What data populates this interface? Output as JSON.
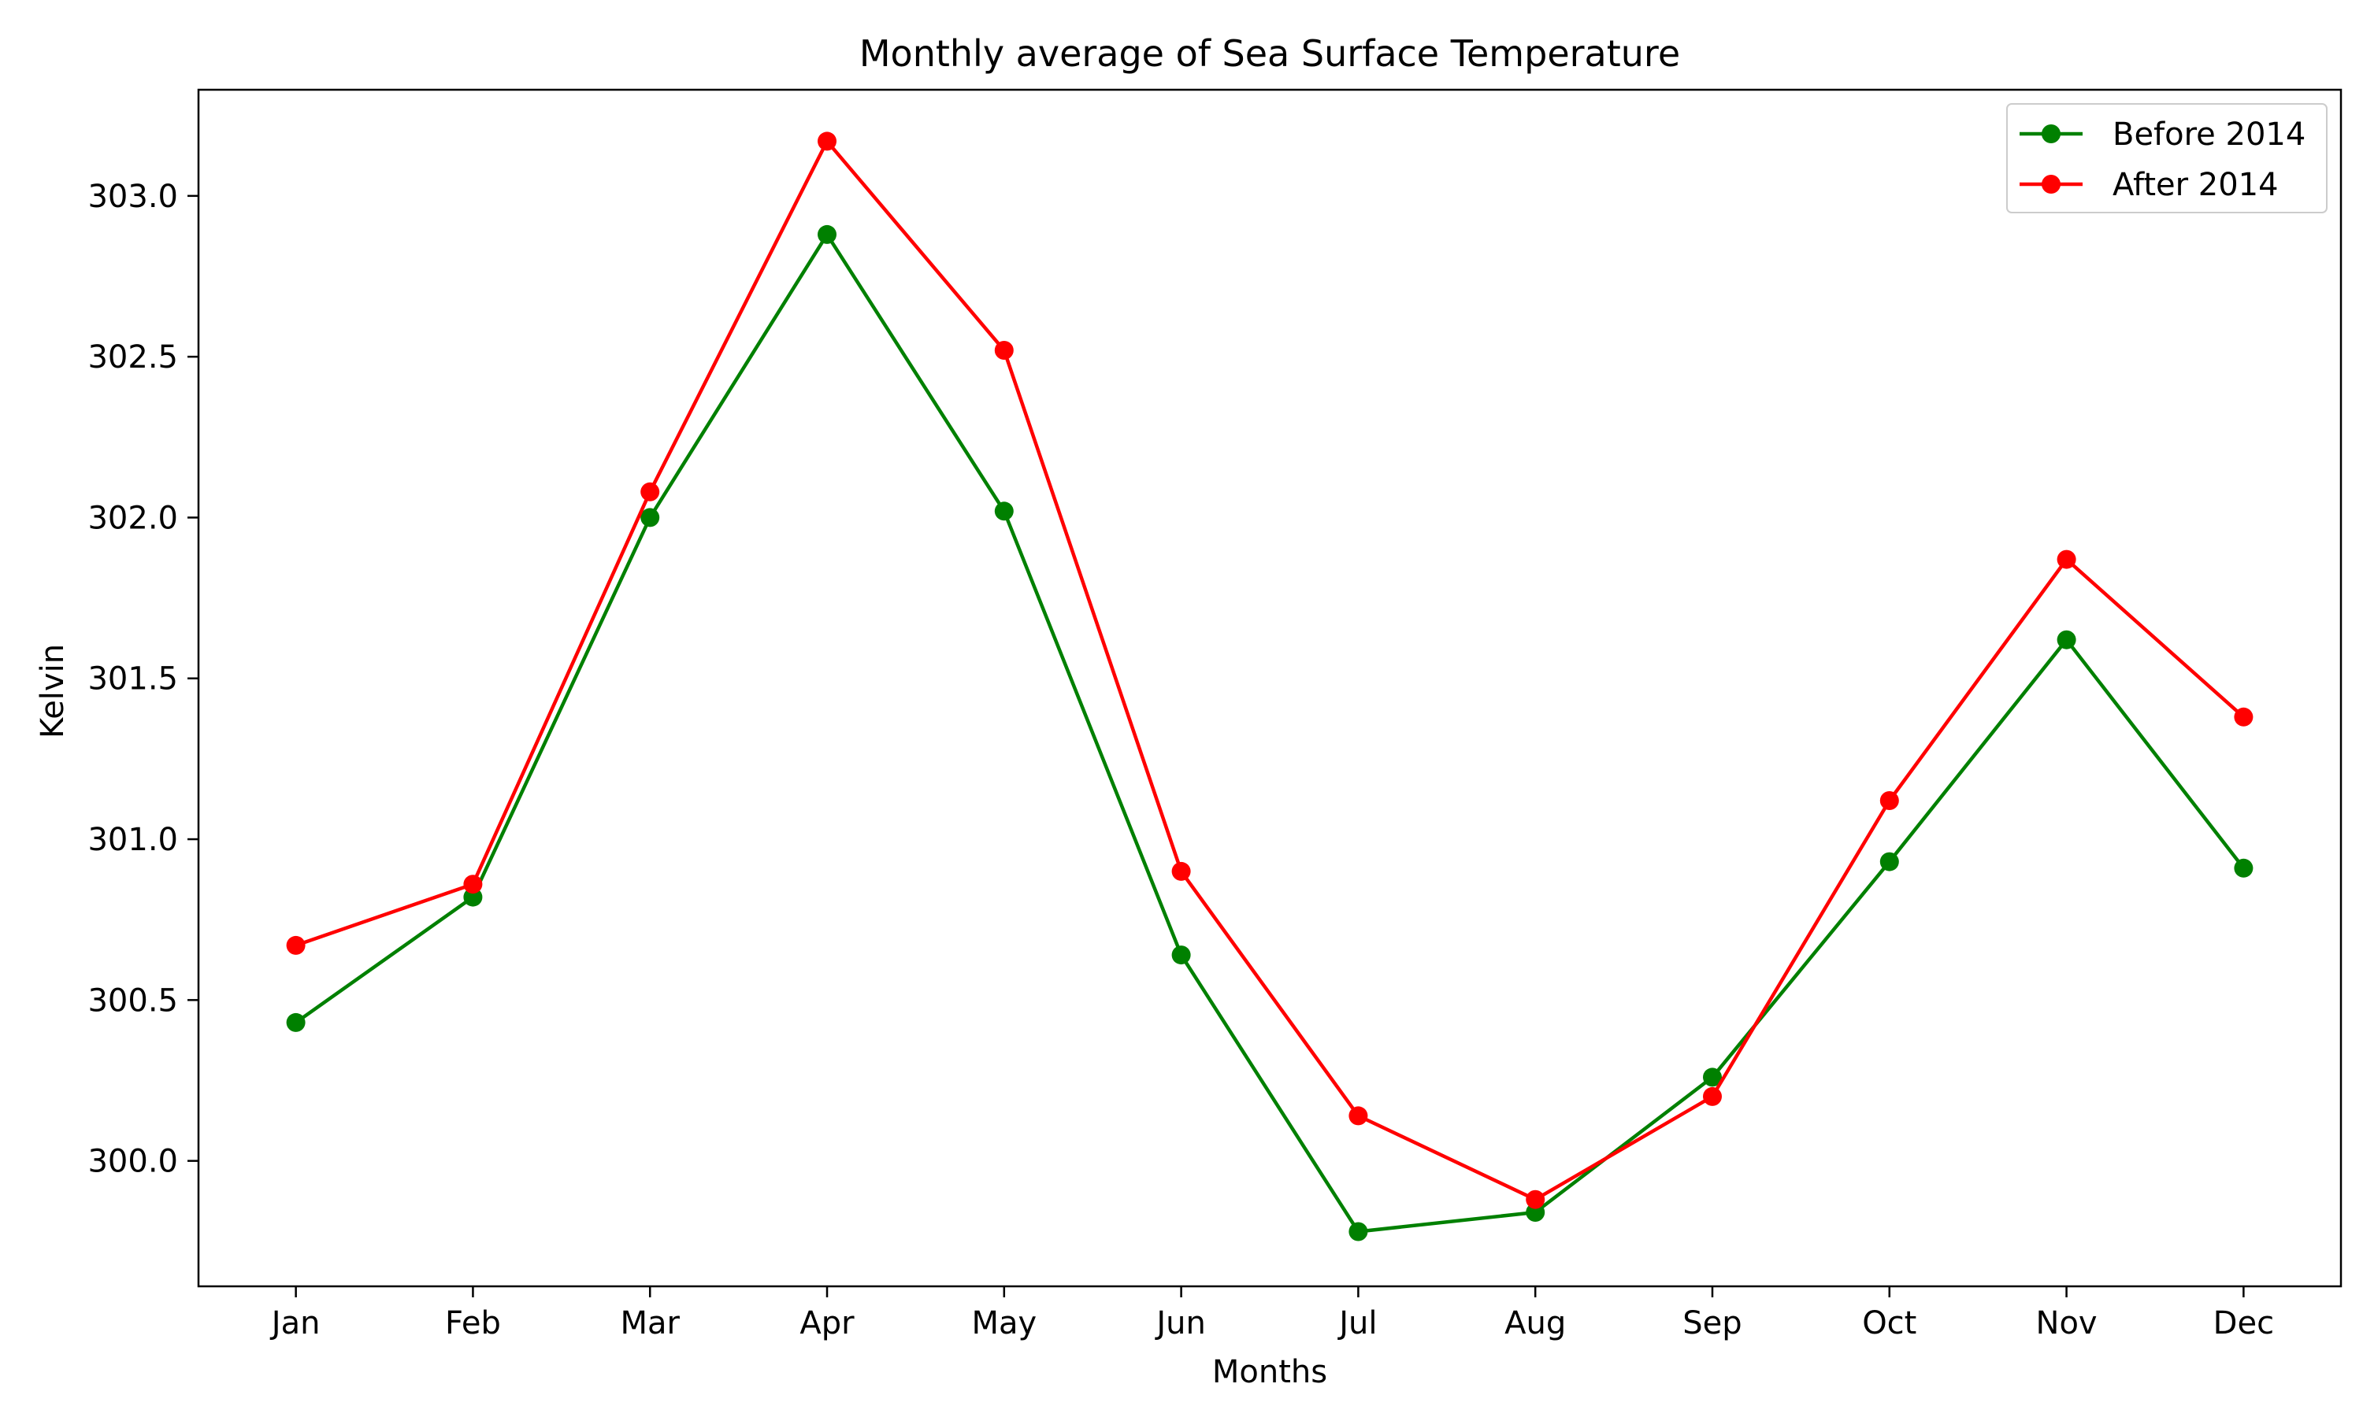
{
  "chart_data": {
    "type": "line",
    "title": "Monthly average of Sea Surface Temperature",
    "xlabel": "Months",
    "ylabel": "Kelvin",
    "categories": [
      "Jan",
      "Feb",
      "Mar",
      "Apr",
      "May",
      "Jun",
      "Jul",
      "Aug",
      "Sep",
      "Oct",
      "Nov",
      "Dec"
    ],
    "ylim": [
      299.61,
      303.33
    ],
    "yticks": [
      300.0,
      300.5,
      301.0,
      301.5,
      302.0,
      302.5,
      303.0
    ],
    "ytick_labels": [
      "300.0",
      "300.5",
      "301.0",
      "301.5",
      "302.0",
      "302.5",
      "303.0"
    ],
    "grid": false,
    "legend_position": "top-right",
    "series": [
      {
        "name": "Before 2014",
        "color": "#008000",
        "marker": "circle",
        "values": [
          300.43,
          300.82,
          302.0,
          302.88,
          302.02,
          300.64,
          299.78,
          299.84,
          300.26,
          300.93,
          301.62,
          300.91
        ]
      },
      {
        "name": "After 2014",
        "color": "#ff0000",
        "marker": "circle",
        "values": [
          300.67,
          300.86,
          302.08,
          303.17,
          302.52,
          300.9,
          300.14,
          299.88,
          300.2,
          301.12,
          301.87,
          301.38
        ]
      }
    ]
  }
}
